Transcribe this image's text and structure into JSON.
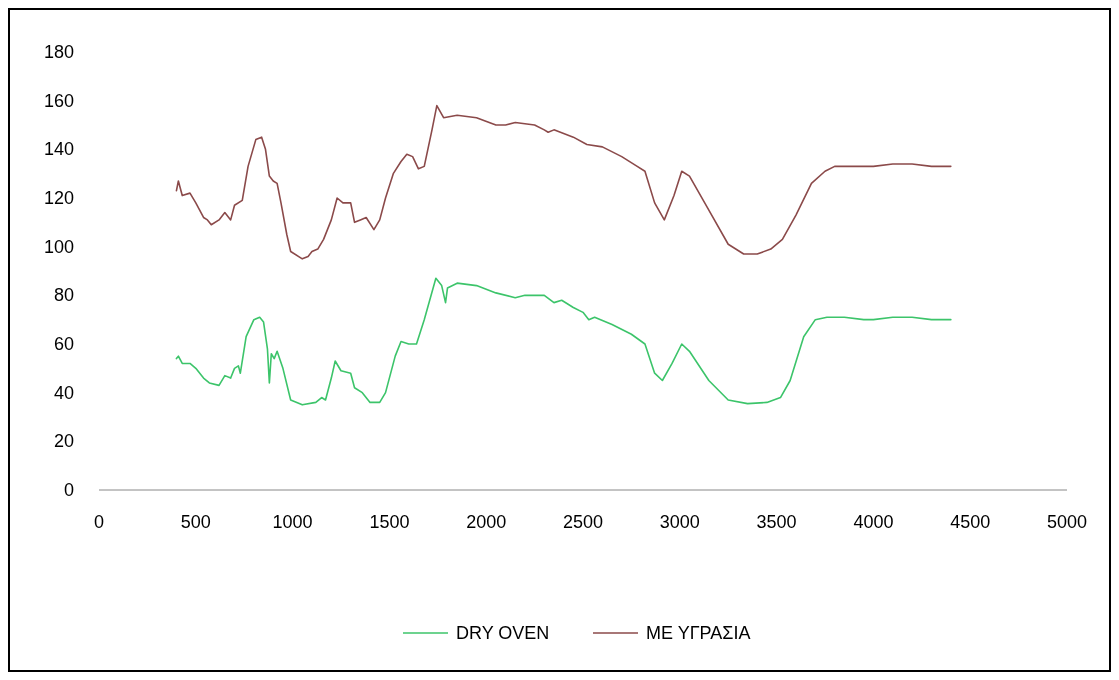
{
  "chart_data": {
    "type": "line",
    "xlim": [
      0,
      5000
    ],
    "xticks": [
      0,
      500,
      1000,
      1500,
      2000,
      2500,
      3000,
      3500,
      4000,
      4500,
      5000
    ],
    "ylim": [
      0,
      180
    ],
    "yticks": [
      0,
      20,
      40,
      60,
      80,
      100,
      120,
      140,
      160,
      180
    ],
    "legend": "bottom",
    "series": [
      {
        "name": "DRY OVEN",
        "color": "#3cc46a",
        "x": [
          400,
          410,
          430,
          470,
          500,
          540,
          570,
          620,
          650,
          680,
          700,
          720,
          730,
          760,
          800,
          830,
          850,
          870,
          880,
          890,
          905,
          920,
          950,
          990,
          1050,
          1120,
          1150,
          1170,
          1200,
          1220,
          1250,
          1300,
          1320,
          1360,
          1400,
          1450,
          1480,
          1530,
          1560,
          1600,
          1640,
          1680,
          1740,
          1770,
          1790,
          1800,
          1850,
          1950,
          2050,
          2150,
          2200,
          2300,
          2350,
          2390,
          2450,
          2500,
          2530,
          2560,
          2650,
          2750,
          2820,
          2870,
          2910,
          2960,
          3010,
          3050,
          3150,
          3250,
          3350,
          3450,
          3520,
          3570,
          3640,
          3700,
          3760,
          3850,
          3950,
          4000,
          4100,
          4200,
          4300,
          4400
        ],
        "values": [
          54,
          55,
          52,
          52,
          50,
          46,
          44,
          43,
          47,
          46,
          50,
          51,
          48,
          63,
          70,
          71,
          69,
          58,
          44,
          56,
          54,
          57,
          50,
          37,
          35,
          36,
          38,
          37,
          46,
          53,
          49,
          48,
          42,
          40,
          36,
          36,
          40,
          55,
          61,
          60,
          60,
          70,
          87,
          84,
          77,
          83,
          85,
          84,
          81,
          79,
          80,
          80,
          77,
          78,
          75,
          73,
          70,
          71,
          68,
          64,
          60,
          48,
          45,
          52,
          60,
          57,
          45,
          37,
          35.5,
          36,
          38,
          45,
          63,
          70,
          71,
          71,
          70,
          70,
          71,
          71,
          70,
          70
        ]
      },
      {
        "name": "ΜΕ ΥΓΡΑΣΙΑ",
        "color": "#8b4a4a",
        "x": [
          400,
          410,
          430,
          470,
          500,
          540,
          560,
          580,
          620,
          650,
          680,
          700,
          740,
          770,
          810,
          840,
          860,
          880,
          900,
          920,
          940,
          970,
          990,
          1050,
          1080,
          1100,
          1130,
          1160,
          1200,
          1230,
          1260,
          1300,
          1320,
          1350,
          1380,
          1420,
          1450,
          1480,
          1520,
          1560,
          1590,
          1620,
          1650,
          1680,
          1720,
          1745,
          1780,
          1850,
          1950,
          2050,
          2100,
          2150,
          2250,
          2300,
          2320,
          2350,
          2450,
          2520,
          2600,
          2700,
          2780,
          2820,
          2870,
          2920,
          2970,
          3010,
          3050,
          3150,
          3250,
          3330,
          3400,
          3470,
          3530,
          3600,
          3680,
          3750,
          3800,
          3900,
          4000,
          4100,
          4200,
          4300,
          4400
        ],
        "values": [
          123,
          127,
          121,
          122,
          118,
          112,
          111,
          109,
          111,
          114,
          111,
          117,
          119,
          133,
          144,
          145,
          140,
          129,
          127,
          126,
          118,
          105,
          98,
          95,
          96,
          98,
          99,
          103,
          111,
          120,
          118,
          118,
          110,
          111,
          112,
          107,
          111,
          120,
          130,
          135,
          138,
          137,
          132,
          133,
          148,
          158,
          153,
          154,
          153,
          150,
          150,
          151,
          150,
          148,
          147,
          148,
          145,
          142,
          141,
          137,
          133,
          131,
          118,
          111,
          121,
          131,
          129,
          115,
          101,
          97,
          97,
          99,
          103,
          113,
          126,
          131,
          133,
          133,
          133,
          134,
          134,
          133,
          133
        ]
      }
    ]
  }
}
